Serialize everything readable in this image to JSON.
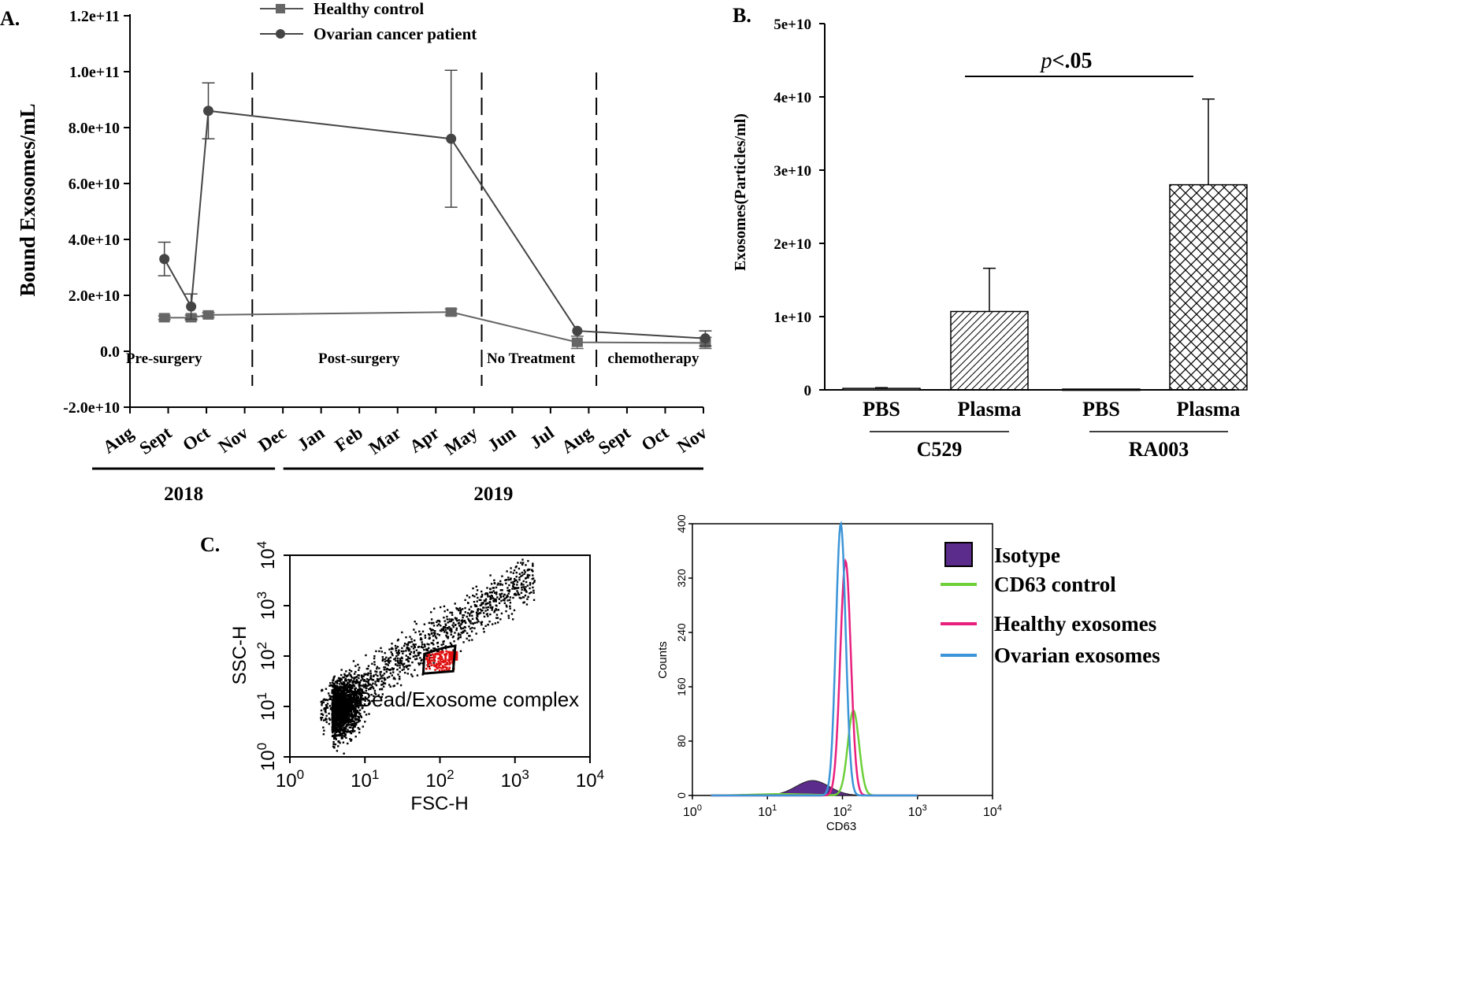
{
  "chart_data": [
    {
      "panel": "A.",
      "type": "line",
      "ylabel": "Bound Exosomes/mL",
      "yticks": [
        "1.2e+11",
        "1.0e+11",
        "8.0e+10",
        "6.0e+10",
        "4.0e+10",
        "2.0e+10",
        "0.0",
        "-2.0e+10"
      ],
      "ylim": [
        -20000000000.0,
        120000000000.0
      ],
      "xticks": [
        "Aug",
        "Sept",
        "Oct",
        "Nov",
        "Dec",
        "Jan",
        "Feb",
        "Mar",
        "Apr",
        "May",
        "Jun",
        "Jul",
        "Aug",
        "Sept",
        "Oct",
        "Nov"
      ],
      "years": [
        {
          "label": "2018",
          "start": 0,
          "end": 4
        },
        {
          "label": "2019",
          "start": 5,
          "end": 15
        }
      ],
      "phases": [
        {
          "label": "Pre-surgery",
          "x": 1.2
        },
        {
          "label": "Post-surgery",
          "x": 6.3
        },
        {
          "label": "No Treatment",
          "x": 10.8
        },
        {
          "label": "chemotherapy",
          "x": 14.0
        }
      ],
      "dividers": [
        3.2,
        9.2,
        12.2
      ],
      "series": [
        {
          "name": "Healthy control",
          "marker": "square",
          "x": [
            0.9,
            1.6,
            2.05,
            8.4,
            11.7,
            15.05
          ],
          "y": [
            12000000000.0,
            12000000000.0,
            13000000000.0,
            14000000000.0,
            3200000000.0,
            3000000000.0
          ],
          "err": [
            700000000.0,
            900000000.0,
            800000000.0,
            1100000000.0,
            2200000000.0,
            2000000000.0
          ]
        },
        {
          "name": "Ovarian cancer patient",
          "marker": "circle",
          "x": [
            0.9,
            1.6,
            2.05,
            8.4,
            11.7,
            15.05
          ],
          "y": [
            33000000000.0,
            16000000000.0,
            86000000000.0,
            76000000000.0,
            7300000000.0,
            4600000000.0
          ],
          "err": [
            6000000000.0,
            4500000000.0,
            10000000000.0,
            24500000000.0,
            0,
            2700000000.0
          ]
        }
      ]
    },
    {
      "panel": "B.",
      "type": "bar",
      "ylabel": "Exosomes(Particles/ml)",
      "yticks": [
        "5e+10",
        "4e+10",
        "3e+10",
        "2e+10",
        "1e+10",
        "0"
      ],
      "ylim": [
        0,
        50000000000.0
      ],
      "categories": [
        "PBS",
        "Plasma",
        "PBS",
        "Plasma"
      ],
      "groups": [
        {
          "label": "C529",
          "members": [
            0,
            1
          ]
        },
        {
          "label": "RA003",
          "members": [
            2,
            3
          ]
        }
      ],
      "values": [
        200000000.0,
        10700000000.0,
        100000000.0,
        28000000000.0
      ],
      "err": [
        100000000.0,
        5900000000.0,
        0,
        11700000000.0
      ],
      "patterns": [
        "none",
        "diagonal",
        "none",
        "crosshatch"
      ],
      "significance": {
        "p_italic": "p",
        "text": "<.05",
        "from": 1,
        "to": 3
      }
    },
    {
      "panel": "C.",
      "type": "scatter",
      "xlabel": "FSC-H",
      "ylabel": "SSC-H",
      "scale": "log",
      "xlim": [
        1,
        10000
      ],
      "ylim": [
        1,
        10000
      ],
      "ticks": [
        {
          "base": "10",
          "exp": "0"
        },
        {
          "base": "10",
          "exp": "1"
        },
        {
          "base": "10",
          "exp": "2"
        },
        {
          "base": "10",
          "exp": "3"
        },
        {
          "base": "10",
          "exp": "4"
        }
      ],
      "gate_label": "Bead/Exosome complex",
      "gate_polygon": [
        [
          60,
          45
        ],
        [
          62,
          110
        ],
        [
          110,
          145
        ],
        [
          160,
          160
        ],
        [
          150,
          50
        ]
      ],
      "point_color": "#000000",
      "gate_color": "#e01010"
    },
    {
      "panel": "",
      "type": "area",
      "xlabel": "CD63",
      "ylabel": "Counts",
      "scale": "log-x",
      "xlim": [
        1,
        10000
      ],
      "ylim": [
        0,
        400
      ],
      "yticks": [
        "0",
        "80",
        "160",
        "240",
        "320",
        "400"
      ],
      "xticks": [
        {
          "base": "10",
          "exp": "0"
        },
        {
          "base": "10",
          "exp": "1"
        },
        {
          "base": "10",
          "exp": "2"
        },
        {
          "base": "10",
          "exp": "3"
        },
        {
          "base": "10",
          "exp": "4"
        }
      ],
      "legend": [
        {
          "label": "Isotype",
          "color": "#5b2c8c",
          "kind": "box"
        },
        {
          "label": "CD63 control",
          "color": "#6dcf3a",
          "kind": "line"
        },
        {
          "label": "Healthy exosomes",
          "color": "#e8207e",
          "kind": "line"
        },
        {
          "label": "Ovarian exosomes",
          "color": "#3c95d8",
          "kind": "line"
        }
      ],
      "series": [
        {
          "name": "Isotype",
          "peak_x": 40,
          "peak_y": 22,
          "width": 0.22
        },
        {
          "name": "CD63 control",
          "peak_x": 140,
          "peak_y": 125,
          "width": 0.075
        },
        {
          "name": "Healthy exosomes",
          "peak_x": 110,
          "peak_y": 345,
          "width": 0.07
        },
        {
          "name": "Ovarian exosomes",
          "peak_x": 95,
          "peak_y": 400,
          "width": 0.065
        }
      ]
    }
  ]
}
